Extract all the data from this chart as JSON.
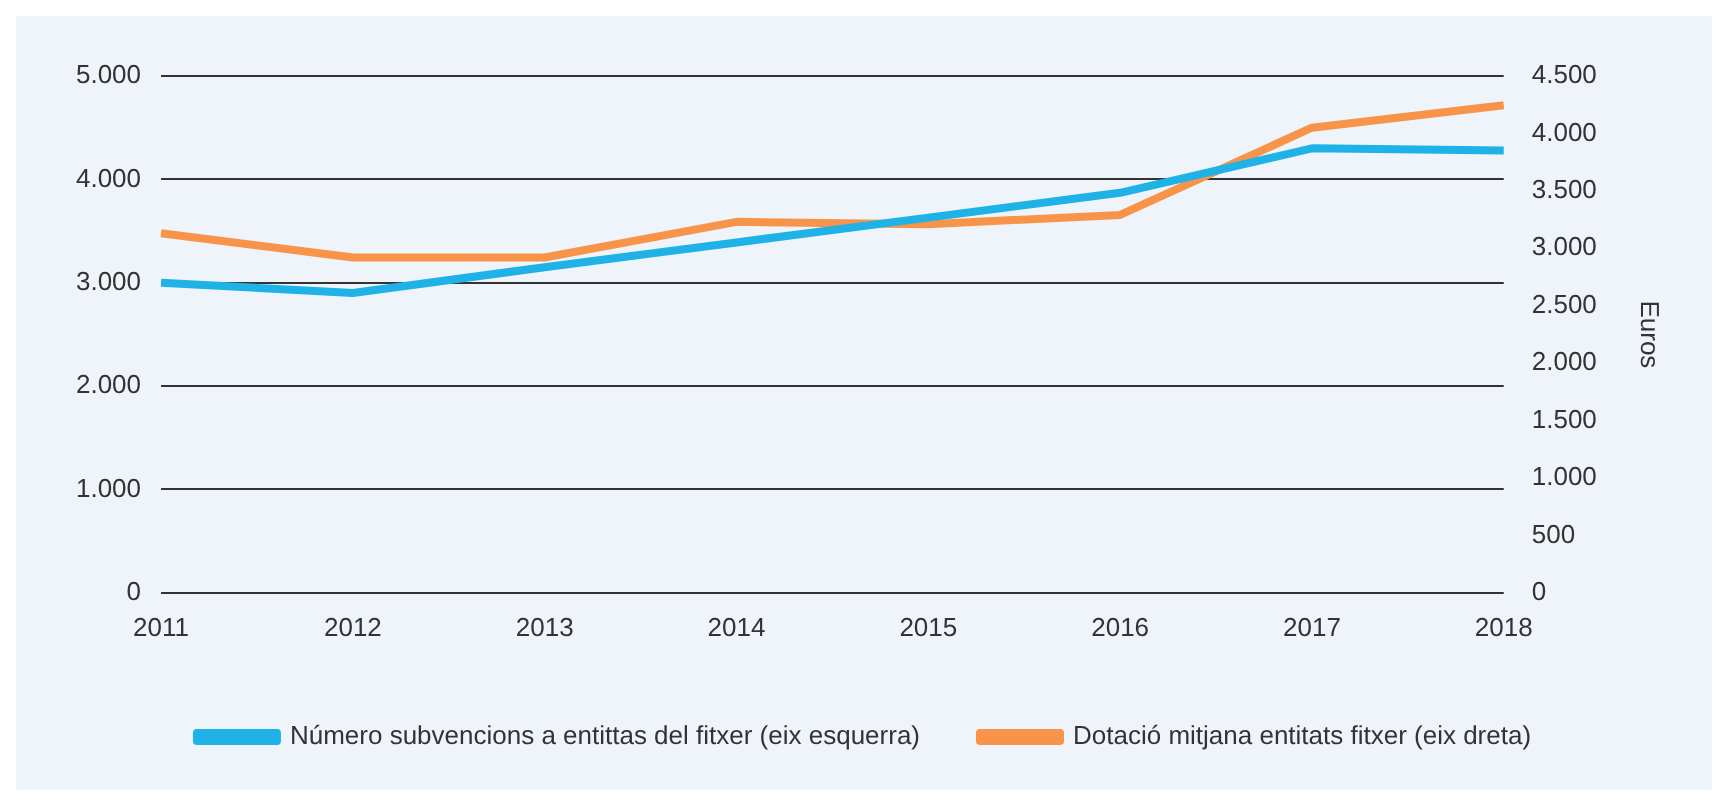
{
  "chart_data": {
    "type": "line",
    "categories": [
      "2011",
      "2012",
      "2013",
      "2014",
      "2015",
      "2016",
      "2017",
      "2018"
    ],
    "series": [
      {
        "name": "Número subvencions a entittas del fitxer (eix esquerra)",
        "color": "#1fb2e6",
        "values": [
          3000,
          2900,
          3150,
          3390,
          3630,
          3870,
          4300,
          4280
        ]
      },
      {
        "name": "Dotació mitjana entitats fitxer (eix dreta)",
        "color": "#f7944a",
        "axis": "y2",
        "values": [
          3130,
          2920,
          2920,
          3230,
          3210,
          3290,
          4050,
          4245
        ]
      }
    ],
    "ylim": [
      0,
      5000
    ],
    "yticks": [
      {
        "value": 0,
        "label": "0"
      },
      {
        "value": 1000,
        "label": "1.000"
      },
      {
        "value": 2000,
        "label": "2.000"
      },
      {
        "value": 3000,
        "label": "3.000"
      },
      {
        "value": 4000,
        "label": "4.000"
      },
      {
        "value": 5000,
        "label": "5.000"
      }
    ],
    "y2lim": [
      0,
      4500
    ],
    "y2ticks": [
      {
        "value": 0,
        "label": "0"
      },
      {
        "value": 500,
        "label": "500"
      },
      {
        "value": 1000,
        "label": "1.000"
      },
      {
        "value": 1500,
        "label": "1.500"
      },
      {
        "value": 2000,
        "label": "2.000"
      },
      {
        "value": 2500,
        "label": "2.500"
      },
      {
        "value": 3000,
        "label": "3.000"
      },
      {
        "value": 3500,
        "label": "3.500"
      },
      {
        "value": 4000,
        "label": "4.000"
      },
      {
        "value": 4500,
        "label": "4.500"
      }
    ],
    "y2label": "Euros",
    "grid": "y",
    "legend": "bottom",
    "marker": "none",
    "line_style": "solid"
  }
}
